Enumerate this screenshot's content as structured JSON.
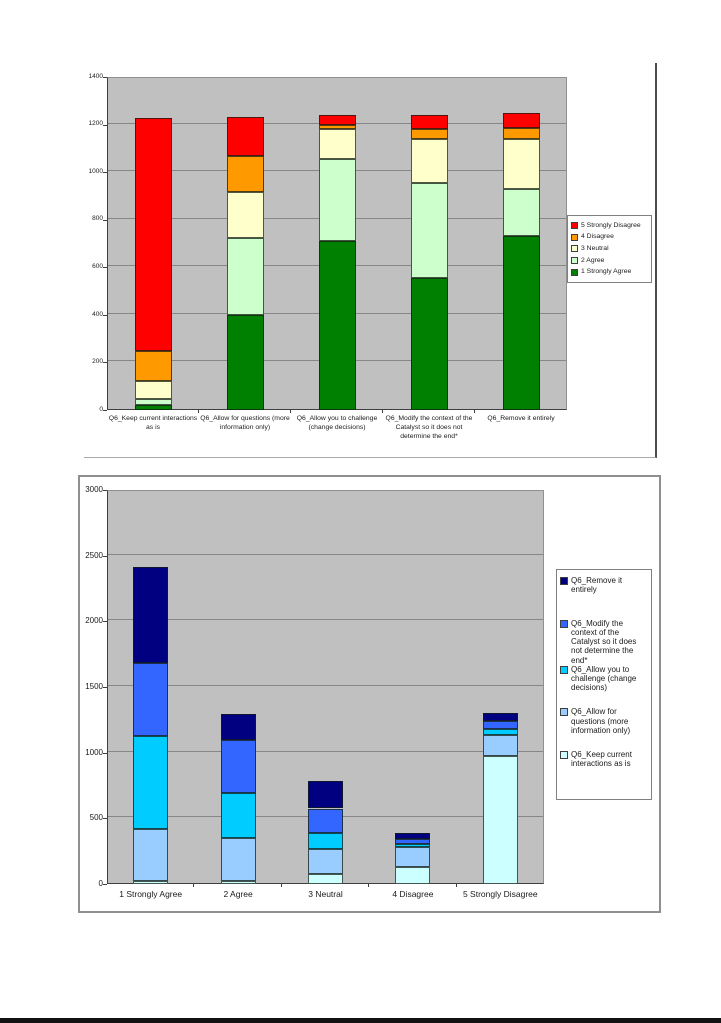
{
  "page": {
    "background": "#ffffff",
    "bottom_rule_color": "#111111"
  },
  "chart_data": [
    {
      "id": "responses-by-question",
      "type": "bar",
      "subtype": "stacked",
      "plot_bg": "#c0c0c0",
      "grid": true,
      "grid_color": "#878787",
      "legend_position": "right",
      "legend_order_reversed": true,
      "ylim": [
        0,
        1400
      ],
      "yticks": [
        "0",
        "200",
        "400",
        "600",
        "800",
        "1000",
        "1200",
        "1400"
      ],
      "ytick_values": [
        0,
        200,
        400,
        600,
        800,
        1000,
        1200,
        1400
      ],
      "categories": [
        "Q6_Keep current interactions as is",
        "Q6_Allow for questions (more information only)",
        "Q6_Allow you to challenge (change decisions)",
        "Q6_Modify the context of the Catalyst so it does not determine the end*",
        "Q6_Remove it entirely"
      ],
      "series": [
        {
          "name": "1 Strongly Agree",
          "color": "#008000",
          "values": [
            20,
            400,
            710,
            555,
            730
          ]
        },
        {
          "name": "2 Agree",
          "color": "#ccffcc",
          "values": [
            25,
            325,
            345,
            400,
            200
          ]
        },
        {
          "name": "3 Neutral",
          "color": "#ffffcc",
          "values": [
            75,
            190,
            125,
            185,
            210
          ]
        },
        {
          "name": "4 Disagree",
          "color": "#ff9900",
          "values": [
            128,
            155,
            20,
            42,
            45
          ]
        },
        {
          "name": "5 Strongly Disagree",
          "color": "#ff0000",
          "values": [
            978,
            160,
            40,
            60,
            62
          ]
        }
      ]
    },
    {
      "id": "questions-by-response",
      "type": "bar",
      "subtype": "stacked",
      "plot_bg": "#c0c0c0",
      "grid": true,
      "grid_color": "#878787",
      "legend_position": "right",
      "legend_order_reversed": true,
      "ylim": [
        0,
        3000
      ],
      "yticks": [
        "0",
        "500",
        "1000",
        "1500",
        "2000",
        "2500",
        "3000"
      ],
      "ytick_values": [
        0,
        500,
        1000,
        1500,
        2000,
        2500,
        3000
      ],
      "categories": [
        "1 Strongly Agree",
        "2 Agree",
        "3 Neutral",
        "4 Disagree",
        "5 Strongly Disagree"
      ],
      "series": [
        {
          "name": "Q6_Keep current interactions as is",
          "color": "#ccffff",
          "values": [
            20,
            25,
            75,
            128,
            978
          ]
        },
        {
          "name": "Q6_Allow for questions (more information only)",
          "color": "#99ccff",
          "values": [
            400,
            325,
            190,
            155,
            160
          ]
        },
        {
          "name": "Q6_Allow you to challenge (change decisions)",
          "color": "#00ccff",
          "values": [
            710,
            345,
            125,
            20,
            40
          ]
        },
        {
          "name": "Q6_Modify the context of the Catalyst so it does not determine the end*",
          "color": "#3366ff",
          "values": [
            555,
            400,
            185,
            42,
            60
          ]
        },
        {
          "name": "Q6_Remove it entirely",
          "color": "#000080",
          "values": [
            730,
            200,
            210,
            45,
            62
          ]
        }
      ]
    }
  ]
}
